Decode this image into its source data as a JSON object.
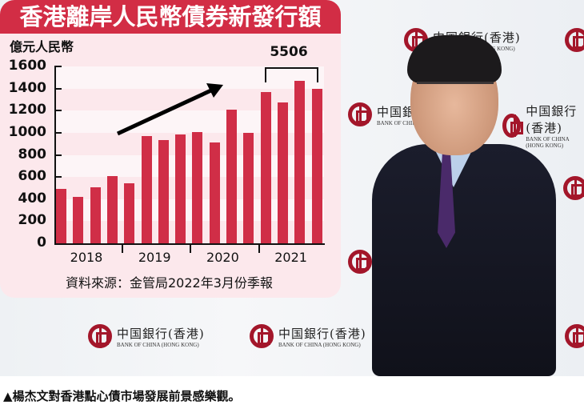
{
  "header": {
    "title": "香港離岸人民幣債券新發行額"
  },
  "chart": {
    "unit_label": "億元人民幣",
    "total_label": "5506",
    "source": "資料來源：金管局2022年3月份季報"
  },
  "caption": {
    "text": "▲楊杰文對香港點心債市場發展前景感樂觀。"
  },
  "photo": {
    "logo_cn": "中国銀行(香港)",
    "logo_en": "BANK OF CHINA (HONG KONG)"
  },
  "colors": {
    "bar": "#d02e47",
    "header": "#d22d45",
    "panel": "#fce8ec",
    "logo": "#a3162a"
  },
  "chart_data": {
    "type": "bar",
    "title": "香港離岸人民幣債券新發行額",
    "xlabel": "",
    "ylabel": "億元人民幣",
    "ylim": [
      0,
      1600
    ],
    "yticks": [
      0,
      200,
      400,
      600,
      800,
      1000,
      1200,
      1400,
      1600
    ],
    "grid": "horizontal alternating bands",
    "year_groups": [
      "2018",
      "2019",
      "2020",
      "2021"
    ],
    "categories": [
      "2018Q1",
      "2018Q2",
      "2018Q3",
      "2018Q4",
      "2019Q1",
      "2019Q2",
      "2019Q3",
      "2019Q4",
      "2020Q1",
      "2020Q2",
      "2020Q3",
      "2020Q4",
      "2021Q1",
      "2021Q2",
      "2021Q3",
      "2021Q4"
    ],
    "values": [
      490,
      420,
      510,
      610,
      540,
      970,
      935,
      985,
      1005,
      915,
      1210,
      1000,
      1365,
      1275,
      1470,
      1396
    ],
    "annotations": [
      {
        "type": "bracket",
        "span": [
          "2021Q1",
          "2021Q4"
        ],
        "label": "5506"
      },
      {
        "type": "arrow",
        "direction": "up-right",
        "meaning": "upward trend"
      }
    ],
    "source": "資料來源：金管局2022年3月份季報"
  }
}
